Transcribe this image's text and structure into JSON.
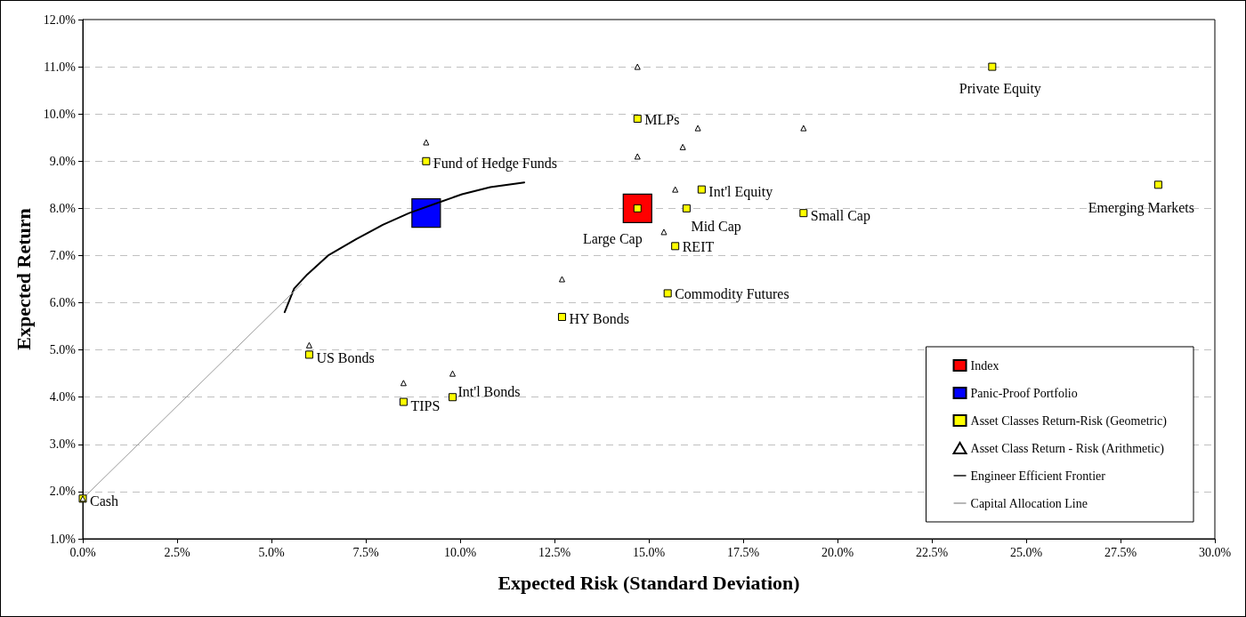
{
  "chart_data": {
    "type": "scatter",
    "xlabel": "Expected Risk (Standard Deviation)",
    "ylabel": "Expected Return",
    "xlim": [
      0,
      30
    ],
    "ylim": [
      1,
      12
    ],
    "xticks": [
      {
        "value": 0,
        "label": "0.0%"
      },
      {
        "value": 2.5,
        "label": "2.5%"
      },
      {
        "value": 5,
        "label": "5.0%"
      },
      {
        "value": 7.5,
        "label": "7.5%"
      },
      {
        "value": 10,
        "label": "10.0%"
      },
      {
        "value": 12.5,
        "label": "12.5%"
      },
      {
        "value": 15,
        "label": "15.0%"
      },
      {
        "value": 17.5,
        "label": "17.5%"
      },
      {
        "value": 20,
        "label": "20.0%"
      },
      {
        "value": 22.5,
        "label": "22.5%"
      },
      {
        "value": 25,
        "label": "25.0%"
      },
      {
        "value": 27.5,
        "label": "27.5%"
      },
      {
        "value": 30,
        "label": "30.0%"
      }
    ],
    "yticks": [
      {
        "value": 1,
        "label": "1.0%"
      },
      {
        "value": 2,
        "label": "2.0%"
      },
      {
        "value": 3,
        "label": "3.0%"
      },
      {
        "value": 4,
        "label": "4.0%"
      },
      {
        "value": 5,
        "label": "5.0%"
      },
      {
        "value": 6,
        "label": "6.0%"
      },
      {
        "value": 7,
        "label": "7.0%"
      },
      {
        "value": 8,
        "label": "8.0%"
      },
      {
        "value": 9,
        "label": "9.0%"
      },
      {
        "value": 10,
        "label": "10.0%"
      },
      {
        "value": 11,
        "label": "11.0%"
      },
      {
        "value": 12,
        "label": "12.0%"
      }
    ],
    "grid": "y",
    "legend": "bottom right",
    "series": [
      {
        "name": "Index",
        "marker": "square",
        "color": "#ff0000",
        "x": [
          14.7
        ],
        "values": [
          8.0
        ]
      },
      {
        "name": "Panic-Proof Portfolio",
        "marker": "square",
        "color": "#0000ff",
        "x": [
          9.1
        ],
        "values": [
          7.9
        ]
      },
      {
        "name": "Asset Classes Return-Risk (Geometric)",
        "marker": "square",
        "color": "#ffff00",
        "x": [
          0.0,
          6.0,
          8.5,
          9.8,
          12.7,
          9.1,
          14.7,
          14.7,
          16.0,
          16.4,
          15.7,
          19.1,
          15.5,
          24.1,
          28.5
        ],
        "values": [
          1.85,
          4.9,
          3.9,
          4.0,
          5.7,
          9.0,
          9.9,
          8.0,
          8.0,
          8.4,
          7.2,
          7.9,
          6.2,
          11.0,
          8.5
        ]
      },
      {
        "name": "Asset Class Return - Risk (Arithmetic)",
        "marker": "triangle",
        "color": "#ffffff",
        "x": [
          0.0,
          6.0,
          8.5,
          9.8,
          12.7,
          9.1,
          14.7,
          14.7,
          15.9,
          16.3,
          15.7,
          19.1,
          15.4
        ],
        "values": [
          1.85,
          5.1,
          4.3,
          4.5,
          6.5,
          9.4,
          11.0,
          9.1,
          9.3,
          9.7,
          8.4,
          9.7,
          7.5
        ]
      },
      {
        "name": "Engineer Efficient Frontier",
        "type": "line",
        "marker": "none",
        "color": "#000000",
        "x": [
          5.35,
          5.4,
          5.6,
          5.95,
          6.5,
          7.25,
          7.95,
          8.65,
          9.35,
          10.05,
          10.8,
          11.7
        ],
        "values": [
          5.8,
          5.9,
          6.3,
          6.6,
          7.0,
          7.35,
          7.65,
          7.9,
          8.1,
          8.3,
          8.45,
          8.55
        ]
      },
      {
        "name": "Capital Allocation Line",
        "type": "line",
        "marker": "none",
        "color": "#999999",
        "x": [
          0.0,
          5.8
        ],
        "values": [
          1.85,
          6.4
        ]
      }
    ],
    "annotations": [
      {
        "text": "Cash",
        "x": 0.0,
        "y": 1.85
      },
      {
        "text": "US Bonds",
        "x": 6.0,
        "y": 4.9
      },
      {
        "text": "TIPS",
        "x": 8.5,
        "y": 3.9
      },
      {
        "text": "Int'l Bonds",
        "x": 9.8,
        "y": 4.0
      },
      {
        "text": "HY Bonds",
        "x": 12.7,
        "y": 5.7
      },
      {
        "text": "Fund of Hedge Funds",
        "x": 9.1,
        "y": 9.0
      },
      {
        "text": "MLPs",
        "x": 14.7,
        "y": 9.9
      },
      {
        "text": "Large Cap",
        "x": 14.7,
        "y": 8.0
      },
      {
        "text": "Mid Cap",
        "x": 16.0,
        "y": 8.0
      },
      {
        "text": "Int'l Equity",
        "x": 16.4,
        "y": 8.4
      },
      {
        "text": "REIT",
        "x": 15.7,
        "y": 7.2
      },
      {
        "text": "Small Cap",
        "x": 19.1,
        "y": 7.9
      },
      {
        "text": "Commodity Futures",
        "x": 15.5,
        "y": 6.2
      },
      {
        "text": "Private Equity",
        "x": 24.1,
        "y": 11.0
      },
      {
        "text": "Emerging Markets",
        "x": 28.5,
        "y": 8.5
      }
    ]
  }
}
